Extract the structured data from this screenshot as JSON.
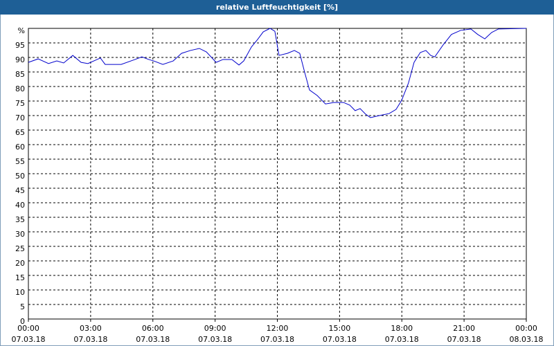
{
  "chart_data": {
    "type": "line",
    "title": "relative Luftfeuchtigkeit [%]",
    "x": [
      0,
      0.47,
      0.97,
      1.37,
      1.7,
      2.14,
      2.54,
      2.87,
      3.47,
      3.7,
      4.47,
      5.14,
      5.47,
      5.8,
      6.04,
      6.48,
      6.98,
      7.38,
      7.81,
      8.24,
      8.58,
      9.05,
      9.38,
      9.81,
      10.15,
      10.38,
      10.75,
      11.05,
      11.32,
      11.65,
      11.88,
      12.08,
      12.48,
      12.82,
      13.08,
      13.32,
      13.55,
      13.92,
      14.32,
      14.72,
      15.19,
      15.49,
      15.75,
      15.99,
      16.25,
      16.49,
      16.92,
      17.39,
      17.72,
      17.99,
      18.32,
      18.59,
      18.89,
      19.16,
      19.39,
      19.59,
      19.99,
      20.39,
      20.83,
      21.33,
      21.66,
      22,
      22.33,
      22.66,
      24
    ],
    "series": [
      {
        "name": "relative Luftfeuchtigkeit",
        "color": "#0000cc",
        "values": [
          88.3,
          89.5,
          87.9,
          88.8,
          88.1,
          90.7,
          88.3,
          87.9,
          89.8,
          87.6,
          87.6,
          89.3,
          90.2,
          89.3,
          88.8,
          87.6,
          88.8,
          91.4,
          92.4,
          93.1,
          91.9,
          88.3,
          89.3,
          89.3,
          87.4,
          88.8,
          93.6,
          96.2,
          98.8,
          100,
          99,
          90.7,
          91.4,
          92.4,
          91.4,
          84.8,
          78.8,
          76.9,
          74,
          74.5,
          74.5,
          73.6,
          71.7,
          72.4,
          70.5,
          69.3,
          70,
          70.7,
          72.1,
          75.2,
          81.2,
          88.3,
          91.7,
          92.4,
          90.7,
          90.2,
          94.3,
          97.9,
          99.3,
          99.8,
          97.9,
          96.4,
          98.6,
          99.8,
          100
        ]
      }
    ],
    "xlim": [
      0,
      24
    ],
    "xticks": [
      {
        "value": 0,
        "label": "00:00"
      },
      {
        "value": 3,
        "label": "03:00"
      },
      {
        "value": 6,
        "label": "06:00"
      },
      {
        "value": 9,
        "label": "09:00"
      },
      {
        "value": 12,
        "label": "12:00"
      },
      {
        "value": 15,
        "label": "15:00"
      },
      {
        "value": 18,
        "label": "18:00"
      },
      {
        "value": 21,
        "label": "21:00"
      },
      {
        "value": 24,
        "label": "00:00"
      }
    ],
    "xtick_dates": [
      "07.03.18",
      "07.03.18",
      "07.03.18",
      "07.03.18",
      "07.03.18",
      "07.03.18",
      "07.03.18",
      "07.03.18",
      "08.03.18"
    ],
    "ylim": [
      0,
      100
    ],
    "yticks": [
      0,
      5,
      10,
      15,
      20,
      25,
      30,
      35,
      40,
      45,
      50,
      55,
      60,
      65,
      70,
      75,
      80,
      85,
      90,
      95,
      {
        "value": 100,
        "label": "%"
      }
    ],
    "grid": true
  }
}
